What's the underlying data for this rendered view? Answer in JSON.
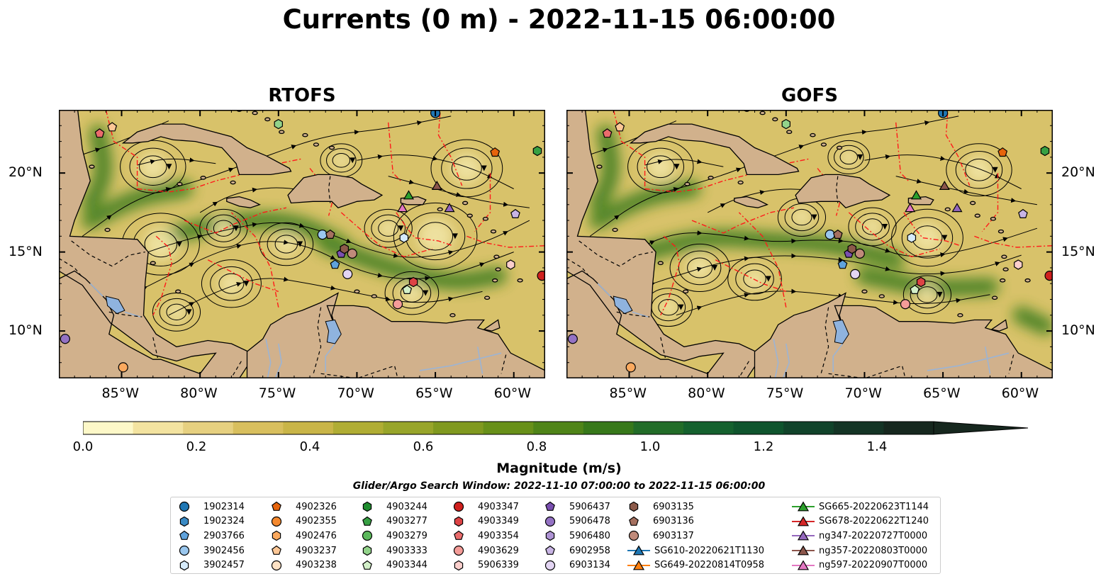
{
  "title": "Currents (0 m) - 2022-11-15 06:00:00",
  "panels": [
    {
      "title": "RTOFS"
    },
    {
      "title": "GOFS"
    }
  ],
  "axes": {
    "x_ticks": [
      "85°W",
      "80°W",
      "75°W",
      "70°W",
      "65°W",
      "60°W"
    ],
    "y_ticks": [
      "20°N",
      "15°N",
      "10°N"
    ],
    "lon_range": [
      -89,
      -58
    ],
    "lat_range": [
      7,
      24
    ]
  },
  "colorbar": {
    "label": "Magnitude (m/s)",
    "ticks": [
      "0.0",
      "0.2",
      "0.4",
      "0.6",
      "0.8",
      "1.0",
      "1.2",
      "1.4"
    ],
    "range": [
      0,
      1.5
    ],
    "colors": [
      "#fdf8c8",
      "#f3e3a0",
      "#e6d080",
      "#d8bf5e",
      "#c9b548",
      "#b0ad34",
      "#98a52a",
      "#80991f",
      "#689019",
      "#4f8418",
      "#37781a",
      "#226c28",
      "#15612e",
      "#0f542d",
      "#11432a",
      "#143425",
      "#16271e"
    ]
  },
  "search_window": "Glider/Argo Search Window: 2022-11-10 07:00:00 to 2022-11-15 06:00:00",
  "legend": {
    "columns": [
      [
        {
          "label": "1902314",
          "shape": "circle",
          "color": "#1f77b4"
        },
        {
          "label": "1902324",
          "shape": "hexagon",
          "color": "#3a8ac4"
        },
        {
          "label": "2903766",
          "shape": "pentagon",
          "color": "#5fa2dc"
        },
        {
          "label": "3902456",
          "shape": "circle",
          "color": "#9ac7ee"
        },
        {
          "label": "3902457",
          "shape": "hexagon",
          "color": "#d6ebfb"
        }
      ],
      [
        {
          "label": "4902326",
          "shape": "pentagon",
          "color": "#e6640c"
        },
        {
          "label": "4902355",
          "shape": "circle",
          "color": "#f5892e"
        },
        {
          "label": "4902476",
          "shape": "hexagon",
          "color": "#fba95e"
        },
        {
          "label": "4903237",
          "shape": "pentagon",
          "color": "#fdc796"
        },
        {
          "label": "4903238",
          "shape": "circle",
          "color": "#fee2c5"
        }
      ],
      [
        {
          "label": "4903244",
          "shape": "hexagon",
          "color": "#1e8c2e"
        },
        {
          "label": "4903277",
          "shape": "pentagon",
          "color": "#37a043"
        },
        {
          "label": "4903279",
          "shape": "circle",
          "color": "#5cb85c"
        },
        {
          "label": "4903333",
          "shape": "hexagon",
          "color": "#92d38a"
        },
        {
          "label": "4903344",
          "shape": "pentagon",
          "color": "#d2efc8"
        }
      ],
      [
        {
          "label": "4903347",
          "shape": "circle",
          "color": "#d0201e"
        },
        {
          "label": "4903349",
          "shape": "hexagon",
          "color": "#dd4345"
        },
        {
          "label": "4903354",
          "shape": "pentagon",
          "color": "#ea6c6c"
        },
        {
          "label": "4903629",
          "shape": "circle",
          "color": "#f49c98"
        },
        {
          "label": "5906339",
          "shape": "hexagon",
          "color": "#fbcfcc"
        }
      ],
      [
        {
          "label": "5906437",
          "shape": "pentagon",
          "color": "#7a4fb0"
        },
        {
          "label": "5906478",
          "shape": "circle",
          "color": "#9472c4"
        },
        {
          "label": "5906480",
          "shape": "hexagon",
          "color": "#ae93d4"
        },
        {
          "label": "6902958",
          "shape": "pentagon",
          "color": "#c8b4e4"
        },
        {
          "label": "6903134",
          "shape": "circle",
          "color": "#e3d5f3"
        }
      ],
      [
        {
          "label": "6903135",
          "shape": "hexagon",
          "color": "#8c5a4a"
        },
        {
          "label": "6903136",
          "shape": "pentagon",
          "color": "#a5705f"
        },
        {
          "label": "6903137",
          "shape": "circle",
          "color": "#c08a7a"
        },
        {
          "label": "SG610-20220621T1130",
          "shape": "triangle-line",
          "color": "#1f77b4"
        },
        {
          "label": "SG649-20220814T0958",
          "shape": "triangle-line",
          "color": "#ff7f0e"
        }
      ],
      [
        {
          "label": "SG665-20220623T1144",
          "shape": "triangle-line",
          "color": "#2ca02c"
        },
        {
          "label": "SG678-20220622T1240",
          "shape": "triangle-line",
          "color": "#d62728"
        },
        {
          "label": "ng347-20220727T0000",
          "shape": "triangle-line",
          "color": "#9467bd"
        },
        {
          "label": "ng357-20220803T0000",
          "shape": "triangle-line",
          "color": "#8c564b"
        },
        {
          "label": "ng597-20220907T0000",
          "shape": "triangle-line",
          "color": "#e377c2"
        }
      ]
    ]
  },
  "map_markers": [
    {
      "lon": -86.4,
      "lat": 22.5,
      "shape": "pentagon",
      "color": "#ea6c6c"
    },
    {
      "lon": -85.6,
      "lat": 22.9,
      "shape": "pentagon",
      "color": "#fdc796"
    },
    {
      "lon": -75.0,
      "lat": 23.1,
      "shape": "hexagon",
      "color": "#92d38a"
    },
    {
      "lon": -65.0,
      "lat": 23.8,
      "shape": "circle",
      "color": "#1f77b4"
    },
    {
      "lon": -61.2,
      "lat": 21.3,
      "shape": "pentagon",
      "color": "#e6640c"
    },
    {
      "lon": -58.5,
      "lat": 21.4,
      "shape": "hexagon",
      "color": "#37a043"
    },
    {
      "lon": -66.7,
      "lat": 18.6,
      "shape": "triangle",
      "color": "#2ca02c"
    },
    {
      "lon": -67.1,
      "lat": 17.8,
      "shape": "triangle",
      "color": "#e377c2"
    },
    {
      "lon": -64.9,
      "lat": 19.2,
      "shape": "triangle",
      "color": "#8c564b"
    },
    {
      "lon": -64.1,
      "lat": 17.8,
      "shape": "triangle",
      "color": "#9467bd"
    },
    {
      "lon": -59.9,
      "lat": 17.4,
      "shape": "pentagon",
      "color": "#c8b4e4"
    },
    {
      "lon": -72.2,
      "lat": 16.1,
      "shape": "circle",
      "color": "#9ac7ee"
    },
    {
      "lon": -71.7,
      "lat": 16.1,
      "shape": "pentagon",
      "color": "#a5705f"
    },
    {
      "lon": -67.0,
      "lat": 15.9,
      "shape": "hexagon",
      "color": "#d6ebfb"
    },
    {
      "lon": -71.0,
      "lat": 14.9,
      "shape": "pentagon",
      "color": "#7a4fb0"
    },
    {
      "lon": -70.3,
      "lat": 14.9,
      "shape": "circle",
      "color": "#c08a7a"
    },
    {
      "lon": -70.8,
      "lat": 15.2,
      "shape": "hexagon",
      "color": "#8c5a4a"
    },
    {
      "lon": -71.4,
      "lat": 14.2,
      "shape": "pentagon",
      "color": "#5fa2dc"
    },
    {
      "lon": -70.6,
      "lat": 13.6,
      "shape": "circle",
      "color": "#e3d5f3"
    },
    {
      "lon": -60.2,
      "lat": 14.2,
      "shape": "hexagon",
      "color": "#fbcfcc"
    },
    {
      "lon": -58.2,
      "lat": 13.5,
      "shape": "circle",
      "color": "#d0201e"
    },
    {
      "lon": -66.4,
      "lat": 13.1,
      "shape": "hexagon",
      "color": "#dd4345"
    },
    {
      "lon": -66.8,
      "lat": 12.6,
      "shape": "pentagon",
      "color": "#d2efc8"
    },
    {
      "lon": -67.4,
      "lat": 11.7,
      "shape": "circle",
      "color": "#f49c98"
    },
    {
      "lon": -88.6,
      "lat": 9.5,
      "shape": "circle",
      "color": "#9472c4"
    },
    {
      "lon": -84.9,
      "lat": 7.7,
      "shape": "circle",
      "color": "#fba95e"
    }
  ]
}
